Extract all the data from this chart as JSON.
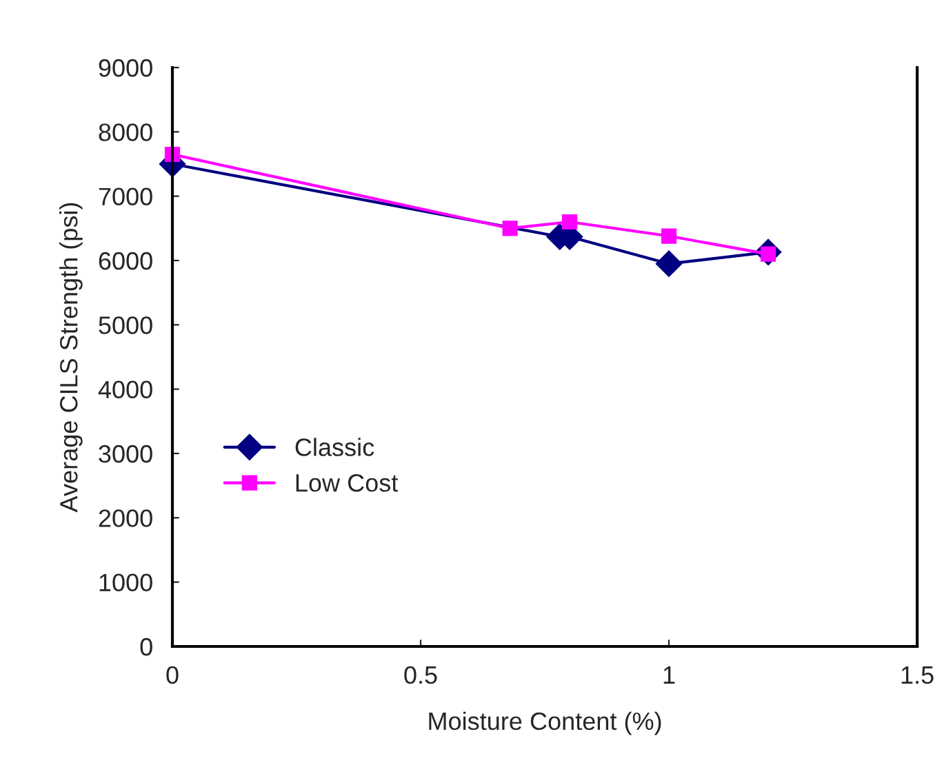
{
  "chart_data": {
    "type": "line",
    "xlabel": "Moisture Content (%)",
    "ylabel": "Average CILS Strength (psi)",
    "xlim": [
      0,
      1.5
    ],
    "xticks": [
      0,
      0.5,
      1,
      1.5
    ],
    "ylim": [
      0,
      9000
    ],
    "yticks": [
      0,
      1000,
      2000,
      3000,
      4000,
      5000,
      6000,
      7000,
      8000,
      9000
    ],
    "grid": false,
    "legend": "lower left",
    "series": [
      {
        "name": "Classic",
        "color": "#000080",
        "marker": "diamond",
        "x": [
          0,
          0.78,
          0.8,
          1.0,
          1.2
        ],
        "values": [
          7500,
          6370,
          6370,
          5950,
          6130
        ]
      },
      {
        "name": "Low Cost",
        "color": "#ff00ff",
        "marker": "square",
        "x": [
          0,
          0.68,
          0.8,
          1.0,
          1.2
        ],
        "values": [
          7650,
          6500,
          6600,
          6380,
          6100
        ]
      }
    ]
  }
}
